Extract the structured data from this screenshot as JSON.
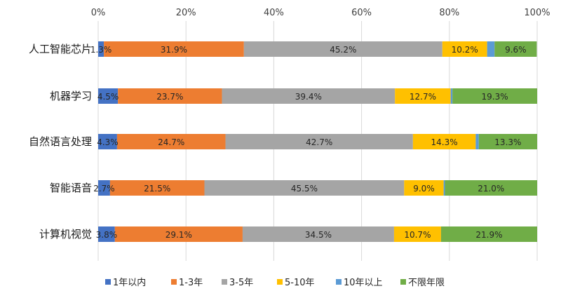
{
  "chart_data": {
    "type": "bar",
    "orientation": "horizontal",
    "stacked": true,
    "normalized": true,
    "title": "",
    "xlim": [
      0,
      100
    ],
    "x_ticks": [
      "0%",
      "20%",
      "40%",
      "60%",
      "80%",
      "100%"
    ],
    "categories": [
      "人工智能芯片",
      "机器学习",
      "自然语言处理",
      "智能语音",
      "计算机视觉"
    ],
    "series": [
      {
        "name": "1年以内",
        "color": "#4472C4",
        "values": [
          1.3,
          4.5,
          4.3,
          2.7,
          3.8
        ],
        "labels": [
          "1.3%",
          "4.5%",
          "4.3%",
          "2.7%",
          "3.8%"
        ]
      },
      {
        "name": "1-3年",
        "color": "#ED7D31",
        "values": [
          31.9,
          23.7,
          24.7,
          21.5,
          29.1
        ],
        "labels": [
          "31.9%",
          "23.7%",
          "24.7%",
          "21.5%",
          "29.1%"
        ]
      },
      {
        "name": "3-5年",
        "color": "#A5A5A5",
        "values": [
          45.2,
          39.4,
          42.7,
          45.5,
          34.5
        ],
        "labels": [
          "45.2%",
          "39.4%",
          "42.7%",
          "45.5%",
          "34.5%"
        ]
      },
      {
        "name": "5-10年",
        "color": "#FFC000",
        "values": [
          10.2,
          12.7,
          14.3,
          9.0,
          10.7
        ],
        "labels": [
          "10.2%",
          "12.7%",
          "14.3%",
          "9.0%",
          "10.7%"
        ]
      },
      {
        "name": "10年以上",
        "color": "#5B9BD5",
        "values": [
          1.7,
          0.4,
          0.7,
          0.3,
          0.0
        ],
        "labels": [
          "",
          "",
          "",
          "",
          ""
        ]
      },
      {
        "name": "不限年限",
        "color": "#70AD47",
        "values": [
          9.6,
          19.3,
          13.3,
          21.0,
          21.9
        ],
        "labels": [
          "9.6%",
          "19.3%",
          "13.3%",
          "21.0%",
          "21.9%"
        ]
      }
    ],
    "legend_position": "bottom"
  }
}
